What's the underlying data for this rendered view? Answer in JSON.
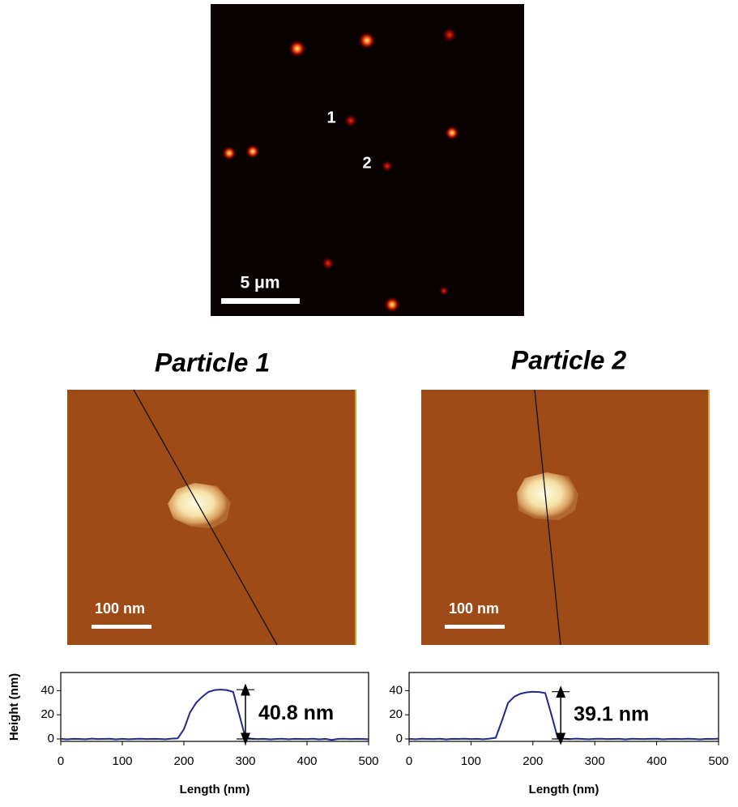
{
  "fluorescence_image": {
    "scale_bar": "5 μm",
    "particle_labels": [
      "1",
      "2"
    ]
  },
  "afm_images": [
    {
      "title": "Particle 1",
      "scale_bar": "100 nm"
    },
    {
      "title": "Particle 2",
      "scale_bar": "100 nm"
    }
  ],
  "chart_data": [
    {
      "type": "line",
      "y_label": "Height (nm)",
      "x_label": "Length (nm)",
      "x": [
        0,
        10,
        20,
        30,
        40,
        50,
        60,
        70,
        80,
        90,
        100,
        110,
        120,
        130,
        140,
        150,
        160,
        170,
        180,
        190,
        200,
        210,
        220,
        230,
        240,
        250,
        260,
        270,
        280,
        290,
        300,
        310,
        320,
        330,
        340,
        350,
        360,
        370,
        380,
        390,
        400,
        410,
        420,
        430,
        440,
        450,
        460,
        470,
        480,
        490,
        500
      ],
      "series": [
        {
          "name": "Particle 1",
          "color": "#1f2a8a",
          "values": [
            0.2,
            -0.3,
            0.1,
            0,
            -0.2,
            0.3,
            -0.1,
            0,
            0.2,
            -0.3,
            0.1,
            -0.2,
            0,
            0.2,
            -0.1,
            0.1,
            0,
            -0.2,
            0.3,
            0.5,
            8,
            22,
            30,
            35,
            39,
            40.5,
            40.8,
            40.4,
            39,
            20,
            1,
            0.2,
            -0.1,
            0.1,
            -0.3,
            0,
            0.2,
            -0.2,
            0.1,
            0,
            -0.1,
            0.2,
            -0.3,
            0.1,
            -0.8,
            0,
            0.2,
            -0.1,
            0.1,
            0,
            -0.2
          ]
        }
      ],
      "xlim": [
        0,
        500
      ],
      "ylim": [
        -2,
        55
      ],
      "xticks": [
        0,
        100,
        200,
        300,
        400,
        500
      ],
      "yticks": [
        0,
        20,
        40
      ],
      "annotation": {
        "label": "40.8 nm",
        "value": 40.8,
        "x": 300
      }
    },
    {
      "type": "line",
      "x_label": "Length (nm)",
      "x": [
        0,
        10,
        20,
        30,
        40,
        50,
        60,
        70,
        80,
        90,
        100,
        110,
        120,
        130,
        140,
        150,
        160,
        170,
        180,
        190,
        200,
        210,
        220,
        230,
        240,
        250,
        260,
        270,
        280,
        290,
        300,
        310,
        320,
        330,
        340,
        350,
        360,
        370,
        380,
        390,
        400,
        410,
        420,
        430,
        440,
        450,
        460,
        470,
        480,
        490,
        500
      ],
      "series": [
        {
          "name": "Particle 2",
          "color": "#1f2a8a",
          "values": [
            0.1,
            -0.2,
            0.2,
            0,
            -0.1,
            0.2,
            -0.3,
            0.1,
            0,
            0.2,
            -0.1,
            0.1,
            -0.2,
            0.3,
            1,
            15,
            30,
            35,
            37.5,
            38.6,
            39.1,
            38.8,
            38,
            20,
            1,
            0.2,
            -0.1,
            0.3,
            0,
            -0.2,
            0.1,
            0.2,
            -0.1,
            0,
            0.1,
            -0.3,
            0.2,
            0,
            -0.1,
            0.1,
            0.2,
            -0.2,
            0,
            0.1,
            -0.1,
            0.2,
            0,
            -0.3,
            0.1,
            0,
            0.2
          ]
        }
      ],
      "xlim": [
        0,
        500
      ],
      "ylim": [
        -2,
        55
      ],
      "xticks": [
        0,
        100,
        200,
        300,
        400,
        500
      ],
      "yticks": [
        0,
        20,
        40
      ],
      "annotation": {
        "label": "39.1 nm",
        "value": 39.1,
        "x": 245
      }
    }
  ]
}
